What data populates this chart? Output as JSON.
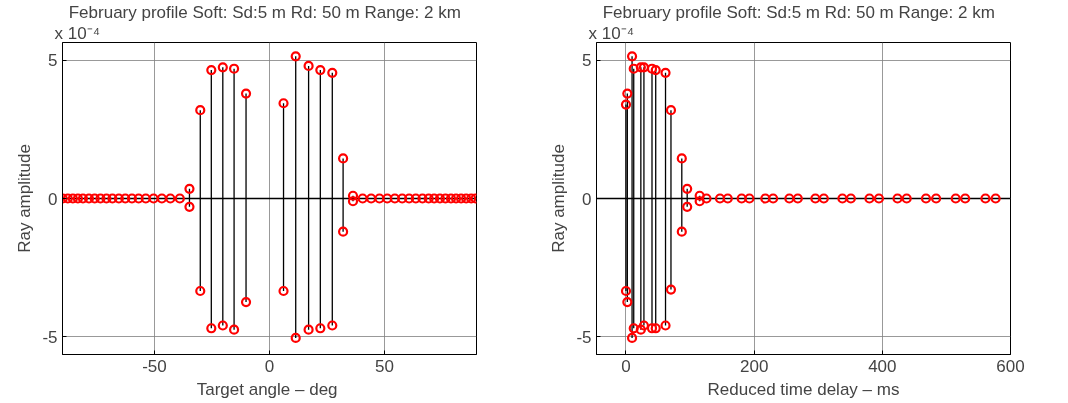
{
  "chart_data": [
    {
      "type": "lollipop",
      "title": "February profile Soft:  Sd:5 m  Rd: 50 m Range: 2 km",
      "xlabel": "Target angle  – deg",
      "ylabel": "Ray amplitude",
      "annotations": [
        "x 10⁻⁴"
      ],
      "xlim": [
        -90,
        90
      ],
      "xticks": [
        -50,
        0,
        50
      ],
      "ylim": [
        -5.65,
        5.65
      ],
      "yticks": [
        -5,
        0,
        5
      ],
      "grid": true,
      "marker": "circle",
      "series": [
        {
          "color": "#ff0000",
          "x": [
            -89.9,
            -87.7,
            -85.5,
            -83.3,
            -81.1,
            -78.5,
            -76.0,
            -73.5,
            -70.9,
            -68.3,
            -65.5,
            -62.7,
            -59.8,
            -56.9,
            -53.8,
            -50.4,
            -46.8,
            -43.1,
            -39.0,
            -34.8,
            -34.8,
            -30.1,
            -30.1,
            -25.3,
            -25.3,
            -20.3,
            -20.3,
            -15.4,
            -15.4,
            -10.2,
            -10.2,
            6.1,
            6.1,
            11.4,
            11.4,
            17.0,
            17.0,
            22.1,
            22.1,
            27.3,
            27.3,
            32.0,
            32.0,
            36.3,
            36.3,
            40.5,
            44.2,
            47.8,
            51.2,
            54.5,
            57.7,
            60.7,
            63.6,
            66.5,
            69.2,
            71.6,
            74.1,
            76.5,
            78.9,
            81.1,
            83.3,
            85.5,
            87.7,
            89.6
          ],
          "values": [
            0,
            0,
            0,
            0,
            0,
            0,
            0,
            0,
            0,
            0,
            0,
            0,
            0,
            0,
            0,
            0,
            0,
            0,
            0,
            0.35,
            -0.3,
            3.2,
            -3.35,
            4.65,
            -4.7,
            4.75,
            -4.6,
            4.7,
            -4.75,
            3.8,
            -3.75,
            3.45,
            -3.35,
            5.15,
            -5.05,
            4.8,
            -4.75,
            4.65,
            -4.7,
            4.55,
            -4.6,
            1.45,
            -1.2,
            0.1,
            -0.1,
            0,
            0,
            0,
            0,
            0,
            0,
            0,
            0,
            0,
            0,
            0,
            0,
            0,
            0,
            0,
            0,
            0,
            0,
            0
          ]
        }
      ]
    },
    {
      "type": "lollipop",
      "title": "February profile Soft:  Sd:5 m  Rd: 50 m Range: 2 km",
      "xlabel": "Reduced time delay – ms",
      "ylabel": "Ray amplitude",
      "annotations": [
        "x 10⁻⁴"
      ],
      "xlim": [
        -46,
        600
      ],
      "xticks": [
        0,
        200,
        400,
        600
      ],
      "ylim": [
        -5.65,
        5.65
      ],
      "yticks": [
        -5,
        0,
        5
      ],
      "grid": true,
      "marker": "circle",
      "series": [
        {
          "color": "#ff0000",
          "x": [
            0,
            0,
            2.1,
            2.1,
            9.5,
            9.5,
            12.1,
            12.1,
            23.2,
            23.2,
            28.0,
            28.0,
            40.6,
            40.6,
            46.4,
            46.4,
            61.7,
            61.7,
            70.2,
            70.2,
            87.1,
            87.1,
            95.5,
            95.5,
            115,
            115,
            125.6,
            146.7,
            158.8,
            180.5,
            192.6,
            217.4,
            229.6,
            254.9,
            268.1,
            295.5,
            308.7,
            337.7,
            350.9,
            379.9,
            394.7,
            423.7,
            438.0,
            468.1,
            483.9,
            514.5,
            529.3,
            560.9,
            576.8
          ],
          "values": [
            3.4,
            -3.35,
            3.8,
            -3.75,
            5.15,
            -5.05,
            4.7,
            -4.7,
            4.75,
            -4.75,
            4.75,
            -4.6,
            4.7,
            -4.7,
            4.65,
            -4.7,
            4.55,
            -4.6,
            3.2,
            -3.3,
            1.45,
            -1.2,
            0.35,
            -0.3,
            0.1,
            -0.1,
            0,
            0,
            0,
            0,
            0,
            0,
            0,
            0,
            0,
            0,
            0,
            0,
            0,
            0,
            0,
            0,
            0,
            0,
            0,
            0,
            0,
            0,
            0
          ]
        }
      ]
    }
  ]
}
